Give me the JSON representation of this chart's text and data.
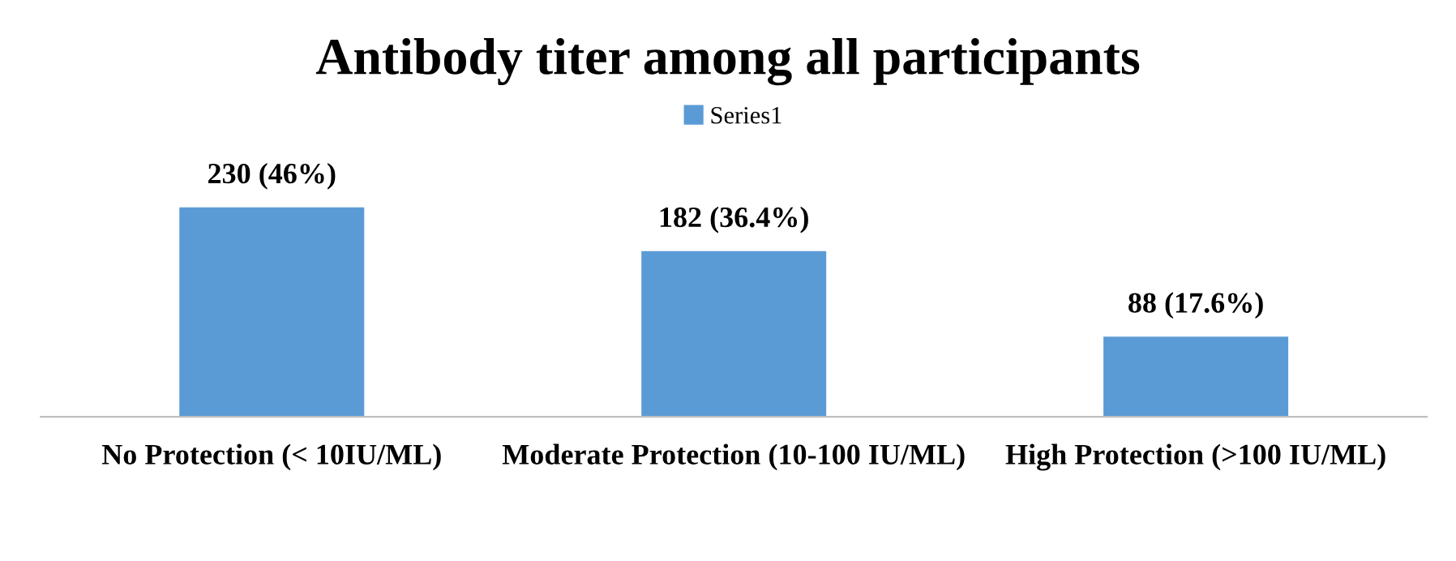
{
  "chart_data": {
    "type": "bar",
    "title": "Antibody titer among all participants",
    "categories": [
      "No Protection (< 10IU/ML)",
      "Moderate Protection (10-100 IU/ML)",
      "High Protection (>100 IU/ML)"
    ],
    "series": [
      {
        "name": "Series1",
        "color": "#5b9bd5",
        "values": [
          230,
          182,
          88
        ],
        "value_labels": [
          "230 (46%)",
          "182 (36.4%)",
          "88 (17.6%)"
        ]
      }
    ],
    "legend": "top",
    "grid": false
  }
}
